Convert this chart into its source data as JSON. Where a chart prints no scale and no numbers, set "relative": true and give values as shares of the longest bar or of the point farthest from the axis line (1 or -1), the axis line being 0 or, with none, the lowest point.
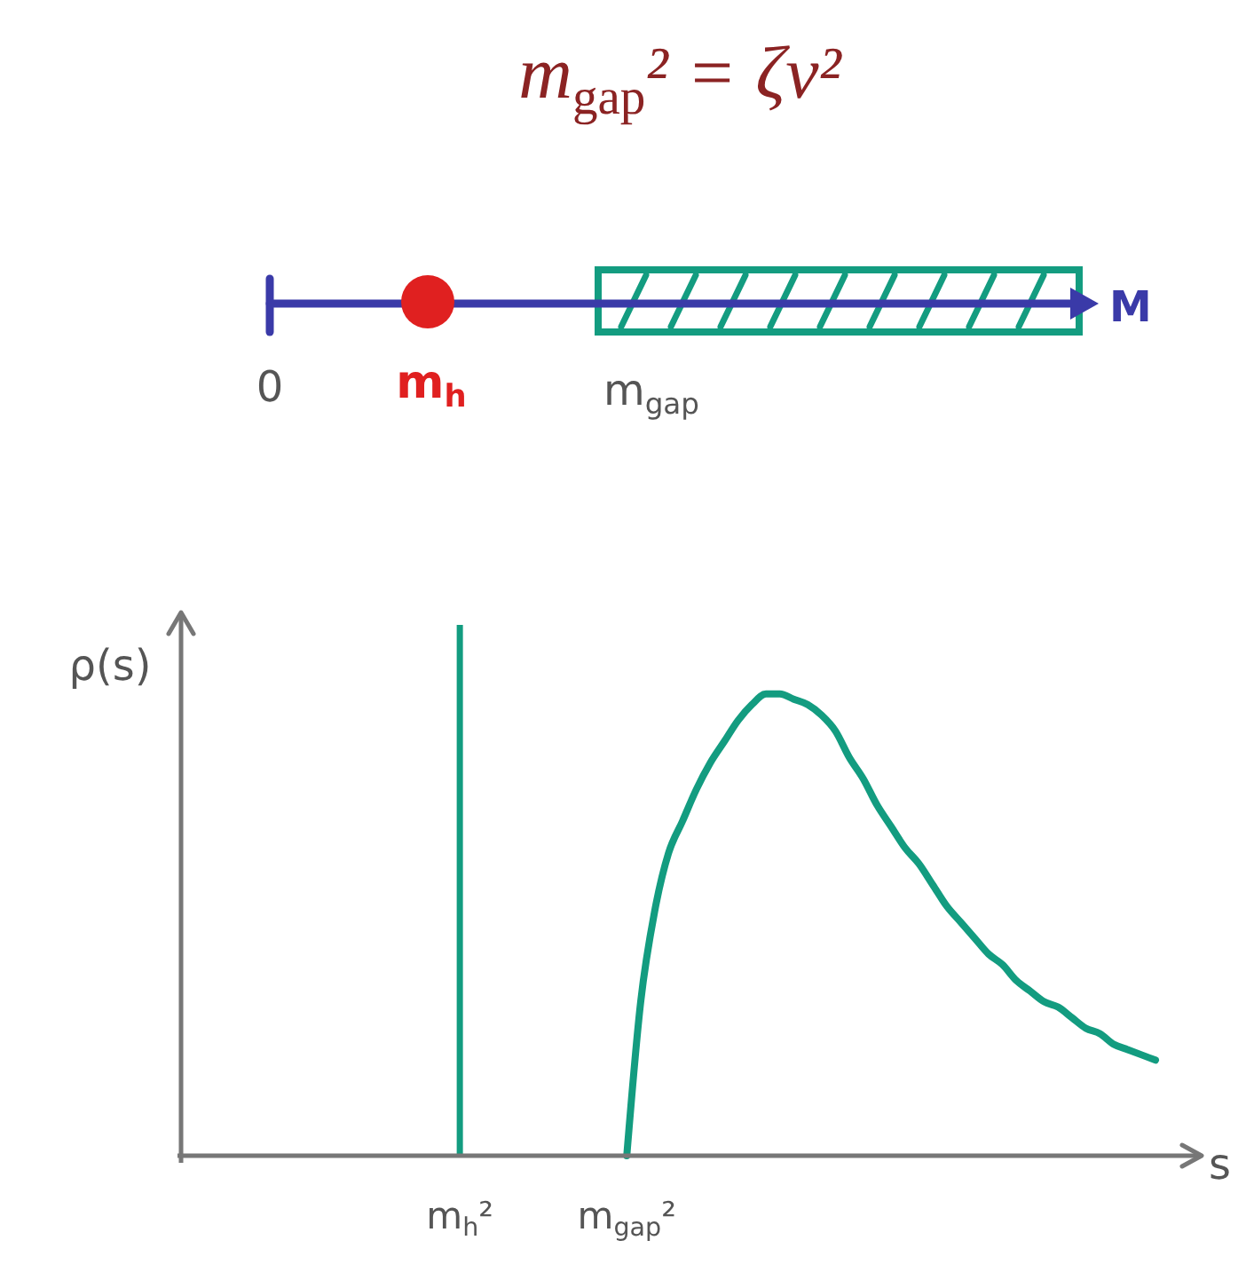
{
  "chart_data": [
    {
      "type": "other",
      "title": "m$_{gap}$² = ζv²",
      "annotations": [
        "0",
        "m$_{h}$",
        "m$_{gap}$",
        "M"
      ]
    },
    {
      "type": "line",
      "xlabel": "s",
      "ylabel": "ρ(s)",
      "relative": true,
      "tick_labels": "x",
      "categories": [
        null,
        null,
        null,
        null,
        null,
        null,
        null,
        null,
        null,
        null,
        null,
        null,
        "m$_{h}$²",
        null,
        null,
        null,
        null,
        null,
        null,
        null,
        null,
        null,
        null,
        null,
        "m$_{gap}$²",
        null,
        null,
        null,
        null,
        null,
        null,
        null,
        null,
        null,
        null,
        null,
        null,
        null,
        null,
        null,
        null,
        null,
        null,
        null,
        null,
        null,
        null,
        null,
        null,
        null,
        null,
        null,
        null,
        null,
        null,
        null,
        null,
        null,
        null,
        null,
        null,
        null,
        null
      ],
      "series": [
        {
          "type": "bar",
          "color": "#139c80",
          "values": [
            null,
            null,
            null,
            null,
            null,
            null,
            null,
            null,
            null,
            null,
            null,
            null,
            1,
            null,
            null,
            null,
            null,
            null,
            null,
            null,
            null,
            null,
            null,
            null,
            null,
            null,
            null,
            null,
            null,
            null,
            null,
            null,
            null,
            null,
            null,
            null,
            null,
            null,
            null,
            null,
            null,
            null,
            null,
            null,
            null,
            null,
            null,
            null,
            null,
            null,
            null,
            null,
            null,
            null,
            null,
            null,
            null,
            null,
            null,
            null,
            null,
            null,
            null
          ]
        },
        {
          "type": "line",
          "color": "#139c80",
          "values": [
            null,
            null,
            null,
            null,
            null,
            null,
            null,
            null,
            null,
            null,
            null,
            null,
            null,
            null,
            null,
            null,
            null,
            null,
            null,
            null,
            null,
            null,
            null,
            null,
            0,
            0.29,
            0.46,
            0.57,
            0.63,
            0.69,
            0.74,
            0.78,
            0.82,
            0.85,
            0.87,
            0.87,
            0.86,
            0.85,
            0.83,
            0.8,
            0.75,
            0.71,
            0.66,
            0.62,
            0.58,
            0.55,
            0.51,
            0.47,
            0.44,
            0.41,
            0.38,
            0.36,
            0.33,
            0.31,
            0.29,
            0.28,
            0.26,
            0.24,
            0.23,
            0.21,
            0.2,
            0.19,
            0.18
          ]
        }
      ]
    }
  ]
}
